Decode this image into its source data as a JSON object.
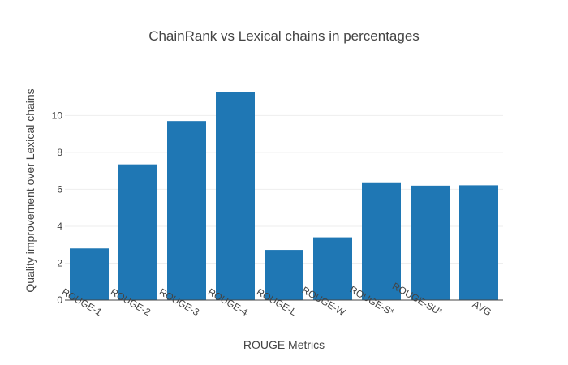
{
  "chart_data": {
    "type": "bar",
    "title": "ChainRank vs Lexical chains in percentages",
    "xlabel": "ROUGE Metrics",
    "ylabel": "Quality improvement over Lexical chains",
    "categories": [
      "ROUGE-1",
      "ROUGE-2",
      "ROUGE-3",
      "ROUGE-4",
      "ROUGE-L",
      "ROUGE-W",
      "ROUGE-S*",
      "ROUGE-SU*",
      "AVG"
    ],
    "values": [
      2.8,
      7.35,
      9.7,
      11.27,
      2.72,
      3.4,
      6.38,
      6.2,
      6.22
    ],
    "ylim": [
      0,
      11.86
    ],
    "yticks": [
      0,
      2,
      4,
      6,
      8,
      10
    ],
    "grid": true,
    "bar_color": "#1f77b4"
  }
}
